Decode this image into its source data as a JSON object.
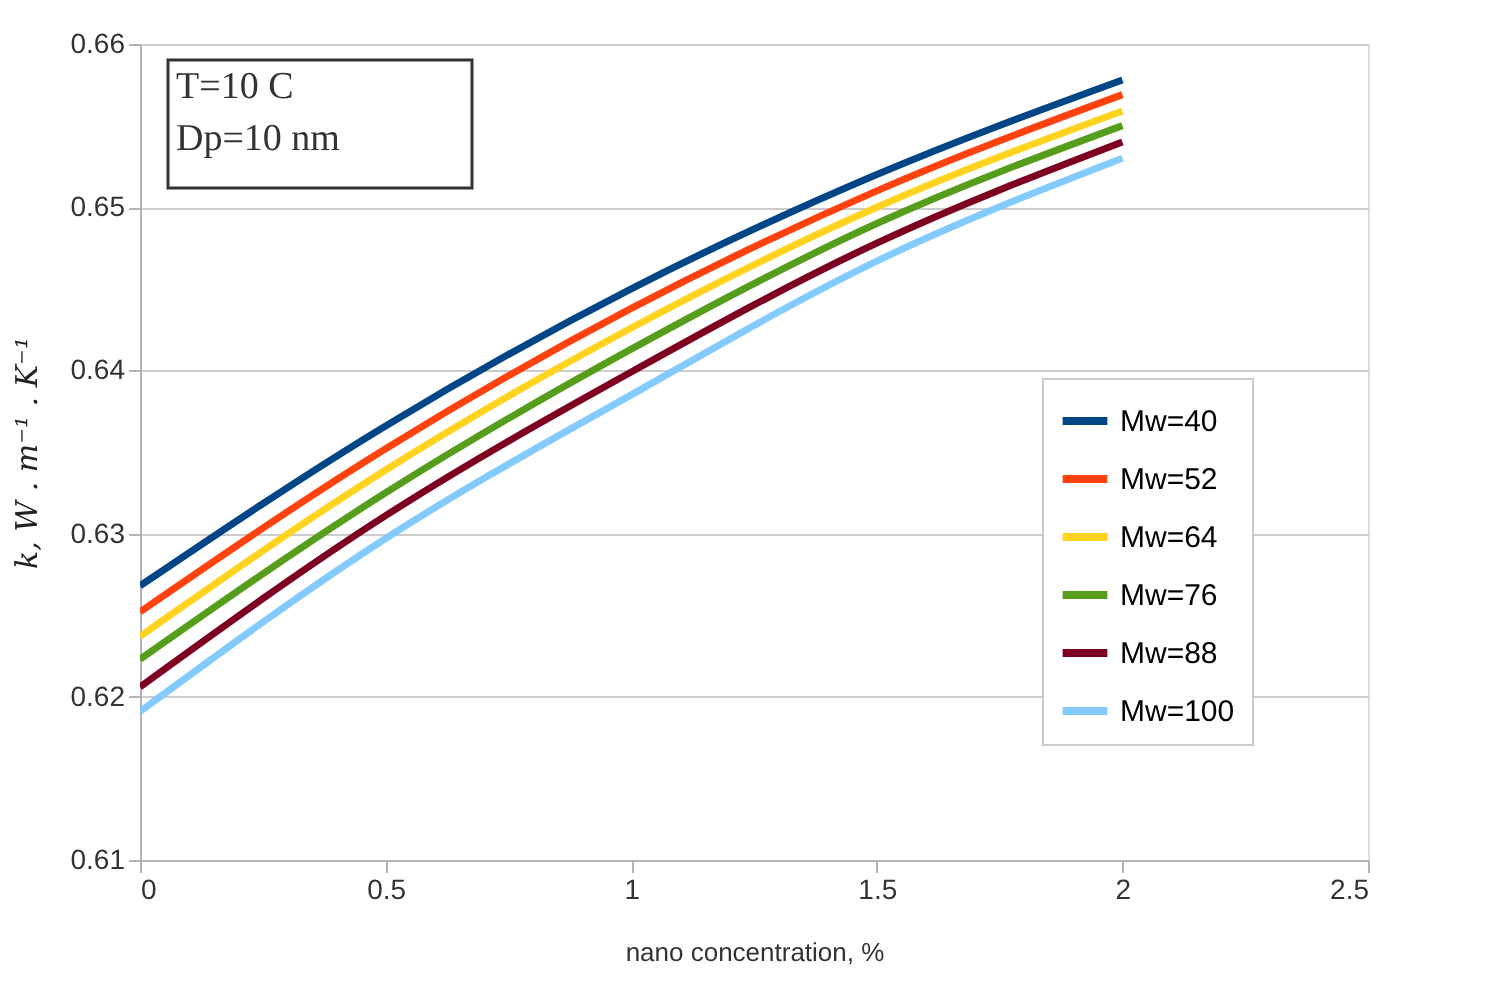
{
  "chart_data": {
    "type": "line",
    "xlabel": "nano concentration,    %",
    "ylabel": "k, W . m⁻¹ . K⁻¹",
    "x": [
      0,
      0.5,
      1,
      1.5,
      2
    ],
    "series": [
      {
        "name": "Mw=40",
        "color": "#004586",
        "values": [
          0.6268,
          0.6366,
          0.645,
          0.652,
          0.6578
        ]
      },
      {
        "name": "Mw=52",
        "color": "#ff420e",
        "values": [
          0.6252,
          0.6352,
          0.6438,
          0.651,
          0.6569
        ]
      },
      {
        "name": "Mw=64",
        "color": "#ffd320",
        "values": [
          0.6237,
          0.6339,
          0.6426,
          0.65,
          0.6559
        ]
      },
      {
        "name": "Mw=76",
        "color": "#579d1c",
        "values": [
          0.6223,
          0.6325,
          0.6413,
          0.649,
          0.655
        ]
      },
      {
        "name": "Mw=88",
        "color": "#7e0021",
        "values": [
          0.6206,
          0.6311,
          0.6399,
          0.6478,
          0.654
        ]
      },
      {
        "name": "Mw=100",
        "color": "#83caff",
        "values": [
          0.6191,
          0.6297,
          0.6385,
          0.6467,
          0.653
        ]
      }
    ],
    "xlim": [
      0,
      2.5
    ],
    "xticks": [
      0,
      0.5,
      1,
      1.5,
      2,
      2.5
    ],
    "ylim": [
      0.61,
      0.66
    ],
    "yticks": [
      0.61,
      0.62,
      0.63,
      0.64,
      0.65,
      0.66
    ],
    "annotations": [
      "T=10 C",
      "Dp=10 nm"
    ],
    "grid": "y",
    "legend": "bottom right",
    "marker": "none",
    "line_style": "solid"
  }
}
